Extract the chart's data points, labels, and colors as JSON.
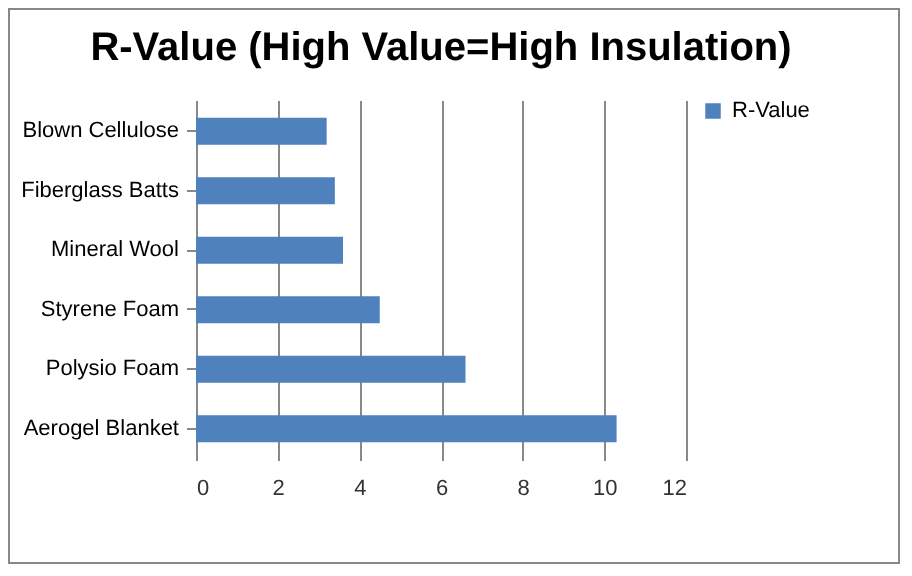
{
  "chart_data": {
    "type": "bar",
    "orientation": "horizontal",
    "title": "R-Value (High Value=High Insulation)",
    "categories": [
      "Blown Cellulose",
      "Fiberglass Batts",
      "Mineral Wool",
      "Styrene Foam",
      "Polysio Foam",
      "Aerogel Blanket"
    ],
    "series": [
      {
        "name": "R-Value",
        "color": "#4f81bd",
        "values": [
          3.2,
          3.4,
          3.6,
          4.5,
          6.6,
          10.3
        ]
      }
    ],
    "xlim": [
      0,
      12
    ],
    "xticks": [
      0,
      2,
      4,
      6,
      8,
      10,
      12
    ],
    "grid": "x",
    "legend": "right"
  }
}
